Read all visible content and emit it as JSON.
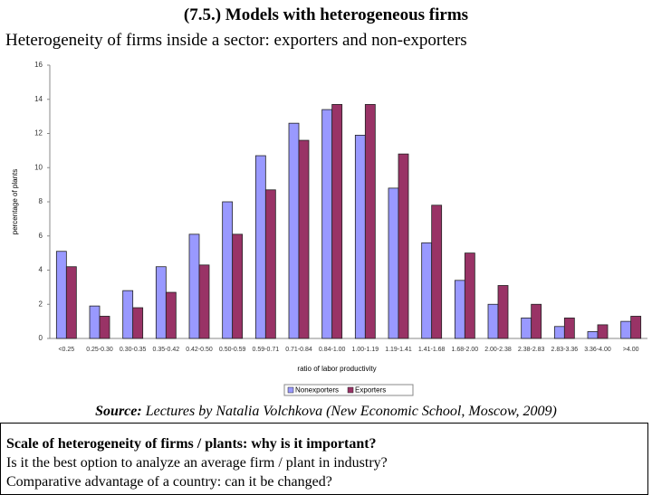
{
  "header": {
    "title": "(7.5.) Models with heterogeneous firms",
    "subtitle": "Heterogeneity of firms inside a sector: exporters and non-exporters"
  },
  "chart_data": {
    "type": "bar",
    "categories": [
      "<0.25",
      "0.25-0.30",
      "0.30-0.35",
      "0.35-0.42",
      "0.42-0.50",
      "0.50-0.59",
      "0.59-0.71",
      "0.71-0.84",
      "0.84-1.00",
      "1.00-1.19",
      "1.19-1.41",
      "1.41-1.68",
      "1.68-2.00",
      "2.00-2.38",
      "2.38-2.83",
      "2.83-3.36",
      "3.36-4.00",
      ">4.00"
    ],
    "series": [
      {
        "name": "Nonexporters",
        "color": "#9999ff",
        "values": [
          5.1,
          1.9,
          2.8,
          4.2,
          6.1,
          8.0,
          10.7,
          12.6,
          13.4,
          11.9,
          8.8,
          5.6,
          3.4,
          2.0,
          1.2,
          0.7,
          0.4,
          1.0
        ]
      },
      {
        "name": "Exporters",
        "color": "#993366",
        "values": [
          4.2,
          1.3,
          1.8,
          2.7,
          4.3,
          6.1,
          8.7,
          11.6,
          13.7,
          13.7,
          10.8,
          7.8,
          5.0,
          3.1,
          2.0,
          1.2,
          0.8,
          1.3
        ]
      }
    ],
    "x_label": "ratio of labor productivity",
    "y_label": "percentage of plants",
    "ylim": [
      0,
      16
    ],
    "yticks": [
      0,
      2,
      4,
      6,
      8,
      10,
      12,
      14,
      16
    ],
    "grid": false,
    "legend": "bottom"
  },
  "source": {
    "label": "Source:",
    "text": "Lectures by Natalia Volchkova (New Economic School, Moscow, 2009)"
  },
  "box": {
    "heading": "Scale of heterogeneity of firms / plants: why is it important?",
    "lines": [
      "Is it the best option to analyze an average firm / plant in industry?",
      "Comparative advantage of a country: can it be changed?"
    ]
  }
}
